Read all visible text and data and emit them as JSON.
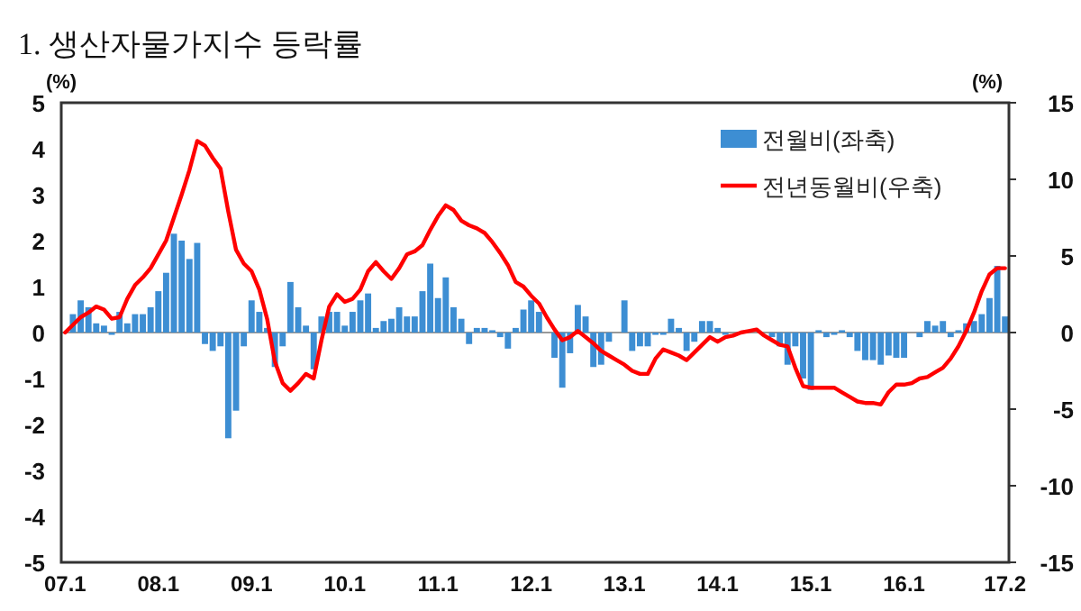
{
  "chart_data": {
    "type": "bar",
    "title": "1. 생산자물가지수 등락률",
    "ylabel": "(%)",
    "y2label": "(%)",
    "categories": [
      "07.1",
      null,
      null,
      null,
      null,
      null,
      null,
      null,
      null,
      null,
      null,
      null,
      "08.1",
      null,
      null,
      null,
      null,
      null,
      null,
      null,
      null,
      null,
      null,
      null,
      "09.1",
      null,
      null,
      null,
      null,
      null,
      null,
      null,
      null,
      null,
      null,
      null,
      "10.1",
      null,
      null,
      null,
      null,
      null,
      null,
      null,
      null,
      null,
      null,
      null,
      "11.1",
      null,
      null,
      null,
      null,
      null,
      null,
      null,
      null,
      null,
      null,
      null,
      "12.1",
      null,
      null,
      null,
      null,
      null,
      null,
      null,
      null,
      null,
      null,
      null,
      "13.1",
      null,
      null,
      null,
      null,
      null,
      null,
      null,
      null,
      null,
      null,
      null,
      "14.1",
      null,
      null,
      null,
      null,
      null,
      null,
      null,
      null,
      null,
      null,
      null,
      "15.1",
      null,
      null,
      null,
      null,
      null,
      null,
      null,
      null,
      null,
      null,
      null,
      "16.1",
      null,
      null,
      null,
      null,
      null,
      null,
      null,
      null,
      null,
      null,
      null,
      null,
      "17.2"
    ],
    "series": [
      {
        "name": "전월비(좌축)",
        "color": "#3d8ed3",
        "values": [
          0,
          0.4,
          0.7,
          0.55,
          0.2,
          0.15,
          -0.05,
          0.45,
          0.2,
          0.4,
          0.4,
          0.55,
          0.9,
          1.3,
          2.15,
          2.0,
          1.6,
          1.95,
          -0.25,
          -0.4,
          -0.3,
          -2.3,
          -1.7,
          -0.3,
          0.7,
          0.45,
          0.1,
          -0.75,
          -0.3,
          1.1,
          0.55,
          0.15,
          -0.8,
          0.35,
          0.45,
          0.45,
          0.15,
          0.45,
          0.7,
          0.85,
          0.1,
          0.25,
          0.3,
          0.55,
          0.35,
          0.35,
          0.9,
          1.5,
          0.75,
          1.2,
          0.55,
          0.3,
          -0.25,
          0.1,
          0.1,
          0.05,
          -0.1,
          -0.35,
          0.1,
          0.5,
          0.7,
          0.45,
          0,
          -0.55,
          -1.2,
          -0.45,
          0.6,
          0.35,
          -0.75,
          -0.7,
          -0.2,
          0,
          0.7,
          -0.4,
          -0.3,
          -0.3,
          -0.05,
          -0.05,
          0.3,
          0.1,
          -0.4,
          -0.2,
          0.25,
          0.25,
          0.1,
          -0.05,
          null,
          null,
          0,
          null,
          0,
          -0.1,
          -0.3,
          -0.7,
          -0.3,
          -1.0,
          -1.25,
          0.05,
          -0.1,
          -0.05,
          0.05,
          -0.1,
          -0.4,
          -0.6,
          -0.6,
          -0.7,
          -0.5,
          -0.55,
          -0.55,
          0,
          -0.1,
          0.25,
          0.15,
          0.25,
          -0.1,
          0.05,
          0.2,
          0.25,
          0.4,
          0.75,
          1.45,
          0.35
        ]
      },
      {
        "name": "전년동월비(우축)",
        "type": "line",
        "axis": "y2",
        "color": "#ff0000",
        "values": [
          0,
          0.5,
          1.0,
          1.3,
          1.7,
          1.5,
          0.9,
          1.0,
          2.2,
          3.1,
          3.6,
          4.2,
          5.1,
          6.0,
          7.5,
          9.0,
          10.6,
          12.5,
          12.2,
          11.4,
          10.7,
          7.9,
          5.4,
          4.5,
          4.0,
          2.8,
          0.9,
          -1.9,
          -3.3,
          -3.8,
          -3.3,
          -2.7,
          -3.0,
          -0.5,
          1.7,
          2.5,
          2.0,
          2.2,
          2.8,
          4.0,
          4.6,
          4.0,
          3.5,
          4.2,
          5.1,
          5.3,
          5.7,
          6.7,
          7.6,
          8.3,
          8.0,
          7.3,
          7.0,
          6.8,
          6.5,
          5.9,
          5.2,
          4.4,
          3.3,
          3.0,
          2.4,
          1.9,
          1.0,
          0.2,
          -0.5,
          -0.3,
          0.1,
          -0.3,
          -0.7,
          -1.2,
          -1.5,
          -1.8,
          -2.1,
          -2.5,
          -2.7,
          -2.7,
          -1.7,
          -1.1,
          -1.3,
          -1.5,
          -1.8,
          -1.3,
          -0.8,
          -0.3,
          -0.6,
          -0.3,
          -0.2,
          0,
          0.1,
          0.2,
          -0.2,
          -0.5,
          -0.8,
          -0.9,
          -2.3,
          -3.5,
          -3.6,
          -3.6,
          -3.6,
          -3.6,
          -3.9,
          -4.2,
          -4.5,
          -4.6,
          -4.6,
          -4.7,
          -3.9,
          -3.4,
          -3.4,
          -3.3,
          -3.0,
          -2.9,
          -2.6,
          -2.3,
          -1.7,
          -0.9,
          0.1,
          1.3,
          2.7,
          3.8,
          4.2,
          4.2
        ]
      }
    ],
    "ylim": [
      -5,
      5
    ],
    "yticks": [
      -5,
      -4,
      -3,
      -2,
      -1,
      0,
      1,
      2,
      3,
      4,
      5
    ],
    "y2lim": [
      -15,
      15
    ],
    "y2ticks": [
      -15,
      -10,
      -5,
      0,
      5,
      10,
      15
    ],
    "ref_lines": [
      {
        "axis": "y",
        "value": 0,
        "color": "#999999"
      }
    ],
    "legend": "top right"
  }
}
